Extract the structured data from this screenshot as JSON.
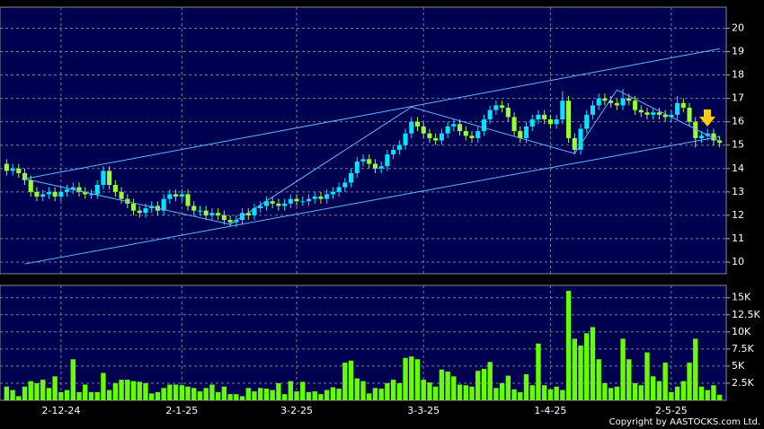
{
  "chart_data": [
    {
      "type": "candlestick",
      "categories": [
        null,
        null,
        null,
        null,
        null,
        null,
        null,
        null,
        null,
        "2-12-24",
        null,
        null,
        null,
        null,
        null,
        null,
        null,
        null,
        null,
        null,
        null,
        null,
        null,
        null,
        null,
        null,
        null,
        null,
        null,
        "2-1-25",
        null,
        null,
        null,
        null,
        null,
        null,
        null,
        null,
        null,
        null,
        null,
        null,
        null,
        null,
        null,
        null,
        null,
        null,
        "3-2-25",
        null,
        null,
        null,
        null,
        null,
        null,
        null,
        null,
        null,
        null,
        null,
        null,
        null,
        null,
        null,
        null,
        null,
        null,
        null,
        null,
        "3-3-25",
        null,
        null,
        null,
        null,
        null,
        null,
        null,
        null,
        null,
        null,
        null,
        null,
        null,
        null,
        null,
        null,
        null,
        null,
        null,
        null,
        "1-4-25",
        null,
        null,
        null,
        null,
        null,
        null,
        null,
        null,
        null,
        null,
        null,
        null,
        null,
        null,
        null,
        null,
        null,
        null,
        null,
        "2-5-25",
        null,
        null,
        null,
        null,
        null,
        null,
        null,
        null
      ],
      "open": [
        14.2,
        13.9,
        14.0,
        13.8,
        13.5,
        13.0,
        12.8,
        12.9,
        13.0,
        12.8,
        13.0,
        13.1,
        13.2,
        13.0,
        12.9,
        12.9,
        13.3,
        13.9,
        13.3,
        13.0,
        12.7,
        12.5,
        12.2,
        12.1,
        12.3,
        12.4,
        12.2,
        12.7,
        12.9,
        12.8,
        12.9,
        12.4,
        12.2,
        12.2,
        12.0,
        12.1,
        12.0,
        11.8,
        11.7,
        11.8,
        12.1,
        12.0,
        12.3,
        12.4,
        12.6,
        12.5,
        12.4,
        12.5,
        12.7,
        12.6,
        12.6,
        12.7,
        12.8,
        12.7,
        12.9,
        13.0,
        13.2,
        13.4,
        13.8,
        14.3,
        14.4,
        14.2,
        14.0,
        14.1,
        14.6,
        14.8,
        15.0,
        15.5,
        16.0,
        15.8,
        15.5,
        15.3,
        15.2,
        15.5,
        15.8,
        15.9,
        15.6,
        15.4,
        15.3,
        15.6,
        16.1,
        16.5,
        16.7,
        16.6,
        16.2,
        15.6,
        15.3,
        15.8,
        16.1,
        16.3,
        16.1,
        15.9,
        16.1,
        16.9,
        15.3,
        14.8,
        15.7,
        16.3,
        16.7,
        17.0,
        16.9,
        16.8,
        16.7,
        17.0,
        16.9,
        16.5,
        16.4,
        16.3,
        16.4,
        16.3,
        16.2,
        16.3,
        16.8,
        16.6,
        16.0,
        15.3,
        15.4,
        15.5,
        15.2
      ],
      "high": [
        14.4,
        14.2,
        14.2,
        14.0,
        13.7,
        13.2,
        13.1,
        13.2,
        13.2,
        13.2,
        13.3,
        13.4,
        13.4,
        13.2,
        13.1,
        13.5,
        14.1,
        14.1,
        13.5,
        13.2,
        12.9,
        12.7,
        12.4,
        12.5,
        12.6,
        12.6,
        12.9,
        13.1,
        13.1,
        13.1,
        13.1,
        12.6,
        12.4,
        12.4,
        12.3,
        12.3,
        12.2,
        12.0,
        12.0,
        12.3,
        12.3,
        12.5,
        12.6,
        12.8,
        12.8,
        12.7,
        12.7,
        12.9,
        12.9,
        12.8,
        12.9,
        13.0,
        13.0,
        13.1,
        13.2,
        13.4,
        13.6,
        14.0,
        14.5,
        14.6,
        14.6,
        14.4,
        14.3,
        14.8,
        15.0,
        15.2,
        15.7,
        16.2,
        16.2,
        16.0,
        15.7,
        15.5,
        15.7,
        16.0,
        16.1,
        16.1,
        15.8,
        15.6,
        15.8,
        16.3,
        16.7,
        16.9,
        16.9,
        16.8,
        16.4,
        15.8,
        16.0,
        16.3,
        16.5,
        16.5,
        16.3,
        16.3,
        17.3,
        17.1,
        15.5,
        15.9,
        16.5,
        16.9,
        17.2,
        17.2,
        17.1,
        17.0,
        17.4,
        17.2,
        17.1,
        16.7,
        16.6,
        16.6,
        16.6,
        16.5,
        16.5,
        17.1,
        17.0,
        16.8,
        16.2,
        15.6,
        15.7,
        15.7,
        15.4
      ],
      "low": [
        13.7,
        13.7,
        13.6,
        13.3,
        12.8,
        12.6,
        12.6,
        12.7,
        12.6,
        12.6,
        12.8,
        12.9,
        12.8,
        12.7,
        12.7,
        12.7,
        13.1,
        13.1,
        12.8,
        12.5,
        12.3,
        12.0,
        11.9,
        11.9,
        12.1,
        12.0,
        12.0,
        12.5,
        12.6,
        12.6,
        12.2,
        12.0,
        12.0,
        11.8,
        11.8,
        11.8,
        11.6,
        11.5,
        11.5,
        11.6,
        11.8,
        11.8,
        12.1,
        12.2,
        12.3,
        12.2,
        12.2,
        12.3,
        12.4,
        12.4,
        12.4,
        12.5,
        12.5,
        12.5,
        12.7,
        12.8,
        13.0,
        13.2,
        13.6,
        14.1,
        14.0,
        13.8,
        13.8,
        13.9,
        14.4,
        14.6,
        14.8,
        15.3,
        15.6,
        15.3,
        15.1,
        15.0,
        15.0,
        15.3,
        15.6,
        15.4,
        15.2,
        15.1,
        15.1,
        15.4,
        15.9,
        16.3,
        16.4,
        16.0,
        15.4,
        15.1,
        15.1,
        15.6,
        15.9,
        15.9,
        15.7,
        15.7,
        15.9,
        15.1,
        14.6,
        14.6,
        15.5,
        16.1,
        16.5,
        16.7,
        16.6,
        16.5,
        16.5,
        16.7,
        16.3,
        16.2,
        16.1,
        16.1,
        16.1,
        16.0,
        16.0,
        16.1,
        16.4,
        15.8,
        14.9,
        15.1,
        15.2,
        15.0,
        14.9
      ],
      "close": [
        13.9,
        14.0,
        13.8,
        13.5,
        13.0,
        12.8,
        12.9,
        13.0,
        12.8,
        13.0,
        13.1,
        13.2,
        13.0,
        12.9,
        12.9,
        13.3,
        13.9,
        13.3,
        13.0,
        12.7,
        12.5,
        12.2,
        12.1,
        12.3,
        12.4,
        12.2,
        12.7,
        12.9,
        12.8,
        12.9,
        12.4,
        12.2,
        12.2,
        12.0,
        12.1,
        12.0,
        11.8,
        11.7,
        11.8,
        12.1,
        12.0,
        12.3,
        12.4,
        12.6,
        12.5,
        12.4,
        12.5,
        12.7,
        12.6,
        12.6,
        12.7,
        12.8,
        12.7,
        12.9,
        13.0,
        13.2,
        13.4,
        13.8,
        14.3,
        14.4,
        14.2,
        14.0,
        14.1,
        14.6,
        14.8,
        15.0,
        15.5,
        16.0,
        15.8,
        15.5,
        15.3,
        15.2,
        15.5,
        15.8,
        15.9,
        15.6,
        15.4,
        15.3,
        15.6,
        16.1,
        16.5,
        16.7,
        16.6,
        16.2,
        15.6,
        15.3,
        15.8,
        16.1,
        16.3,
        16.1,
        15.9,
        16.1,
        16.9,
        15.3,
        14.8,
        15.7,
        16.3,
        16.7,
        17.0,
        16.9,
        16.8,
        16.7,
        17.0,
        16.9,
        16.5,
        16.4,
        16.3,
        16.4,
        16.3,
        16.2,
        16.3,
        16.8,
        16.6,
        16.0,
        15.3,
        15.4,
        15.5,
        15.2,
        15.1
      ],
      "up_color": "#00e5ff",
      "down_color": "#99ff33",
      "ylim": [
        9.5,
        20.9
      ],
      "yticks": [
        10,
        11,
        12,
        13,
        14,
        15,
        16,
        17,
        18,
        19,
        20
      ],
      "grid": true,
      "trend_lines": [
        {
          "color": "#66b3ff",
          "x": [
            3,
            118
          ],
          "y": [
            13.56,
            19.12
          ]
        },
        {
          "color": "#66b3ff",
          "x": [
            3,
            118
          ],
          "y": [
            9.92,
            15.36
          ]
        },
        {
          "color": "#66b3ff",
          "x": [
            3,
            37,
            67,
            94,
            101,
            118
          ],
          "y": [
            13.56,
            11.61,
            16.63,
            14.64,
            17.36,
            15.17
          ]
        }
      ]
    },
    {
      "type": "bar",
      "values": [
        2000,
        1500,
        600,
        2000,
        2800,
        2500,
        3000,
        1800,
        3500,
        1200,
        1500,
        6000,
        1200,
        2300,
        1200,
        1200,
        4000,
        1500,
        2500,
        3000,
        3000,
        2800,
        2700,
        2500,
        1000,
        1200,
        1800,
        2300,
        2300,
        2200,
        2000,
        1800,
        1300,
        1800,
        2300,
        1200,
        2000,
        900,
        900,
        600,
        1800,
        1300,
        1800,
        1700,
        1500,
        2500,
        900,
        2800,
        1300,
        2700,
        1200,
        1300,
        900,
        1500,
        1900,
        1700,
        5500,
        5800,
        3200,
        2800,
        1000,
        1800,
        1700,
        2500,
        3000,
        2500,
        6200,
        6400,
        6000,
        3000,
        2600,
        2000,
        4500,
        4200,
        3500,
        2300,
        2200,
        2000,
        4300,
        4600,
        5600,
        1800,
        2500,
        3600,
        1600,
        1200,
        3800,
        2200,
        8300,
        2200,
        1600,
        2000,
        1500,
        16000,
        9000,
        8000,
        9800,
        10700,
        6000,
        2500,
        1800,
        2000,
        9000,
        6000,
        2500,
        2200,
        7000,
        3500,
        2800,
        5500,
        1200,
        2000,
        2800,
        5500,
        9000,
        2000,
        1500,
        2200,
        800
      ],
      "color": "#66ff00",
      "ylim": [
        0,
        16800
      ],
      "yticks": [
        {
          "value": 2500,
          "label": "2.5K"
        },
        {
          "value": 5000,
          "label": "5K"
        },
        {
          "value": 7500,
          "label": "7.5K"
        },
        {
          "value": 10000,
          "label": "10K"
        },
        {
          "value": 12500,
          "label": "12.5K"
        },
        {
          "value": 15000,
          "label": "15K"
        }
      ],
      "grid": true
    }
  ],
  "footer": "Copyright by AASTOCKS.com Ltd."
}
